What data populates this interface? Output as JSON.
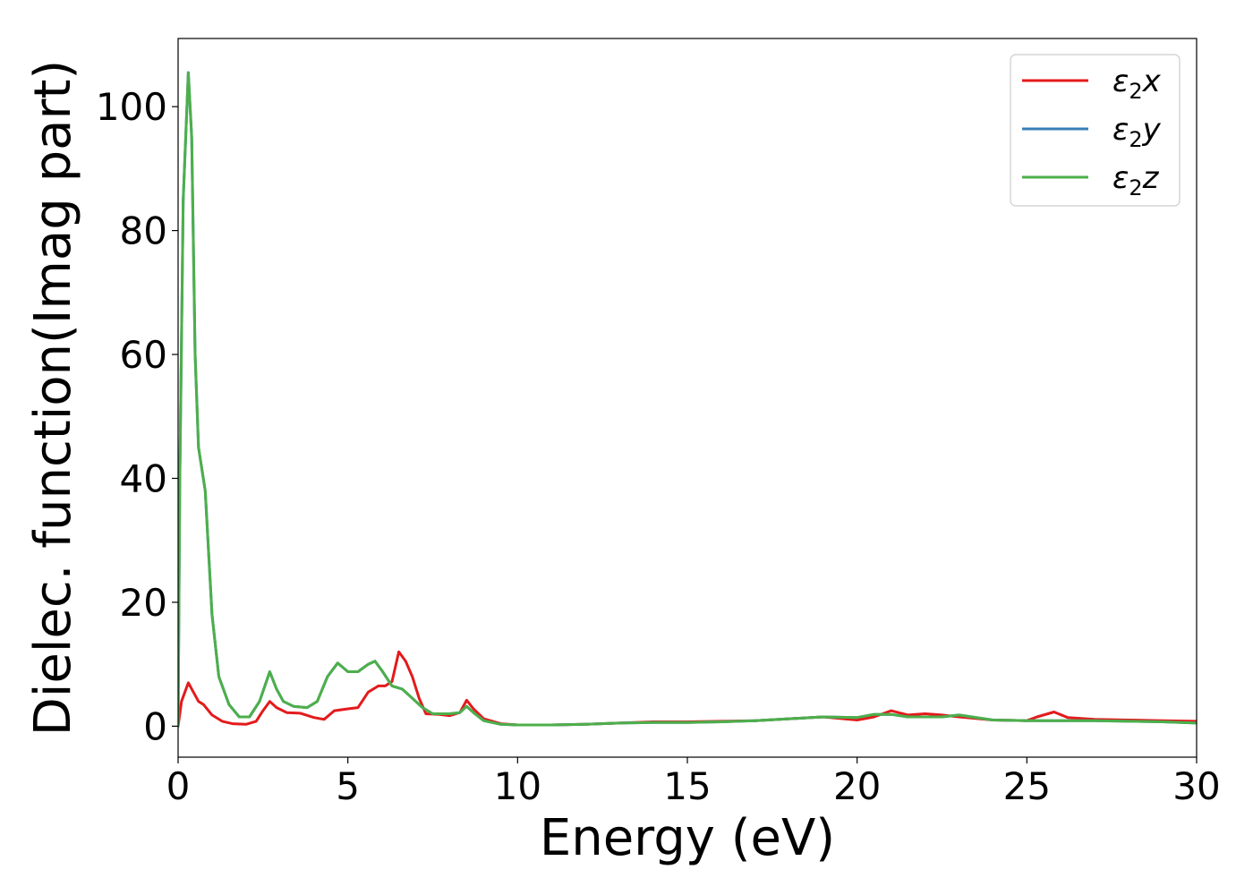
{
  "chart_data": {
    "type": "line",
    "xlabel": "Energy (eV)",
    "ylabel": "Dielec. function(Imag part)",
    "xlim": [
      0,
      30
    ],
    "ylim": [
      -5,
      111
    ],
    "xticks": [
      0,
      5,
      10,
      15,
      20,
      25,
      30
    ],
    "yticks": [
      0,
      20,
      40,
      60,
      80,
      100
    ],
    "grid": false,
    "legend_position": "top-right",
    "series": [
      {
        "name": "ε2x",
        "legend_main": "ε",
        "legend_sub": "2",
        "legend_var": "x",
        "color": "#e41a1c",
        "points": [
          [
            0,
            0
          ],
          [
            0.1,
            4
          ],
          [
            0.3,
            7
          ],
          [
            0.45,
            5.5
          ],
          [
            0.6,
            4
          ],
          [
            0.75,
            3.5
          ],
          [
            1,
            1.8
          ],
          [
            1.3,
            0.8
          ],
          [
            1.6,
            0.4
          ],
          [
            2,
            0.3
          ],
          [
            2.3,
            0.8
          ],
          [
            2.5,
            2.5
          ],
          [
            2.7,
            4
          ],
          [
            2.9,
            3
          ],
          [
            3.2,
            2.2
          ],
          [
            3.6,
            2.1
          ],
          [
            4,
            1.4
          ],
          [
            4.3,
            1.1
          ],
          [
            4.6,
            2.5
          ],
          [
            5,
            2.8
          ],
          [
            5.3,
            3
          ],
          [
            5.6,
            5.5
          ],
          [
            5.9,
            6.5
          ],
          [
            6.1,
            6.5
          ],
          [
            6.3,
            7.2
          ],
          [
            6.5,
            12
          ],
          [
            6.7,
            10.5
          ],
          [
            6.9,
            8
          ],
          [
            7.1,
            4.5
          ],
          [
            7.3,
            2
          ],
          [
            7.7,
            1.9
          ],
          [
            8,
            1.7
          ],
          [
            8.3,
            2.2
          ],
          [
            8.5,
            4.2
          ],
          [
            8.7,
            2.8
          ],
          [
            9,
            1.2
          ],
          [
            9.5,
            0.4
          ],
          [
            10,
            0.2
          ],
          [
            11,
            0.2
          ],
          [
            12,
            0.3
          ],
          [
            13,
            0.5
          ],
          [
            14,
            0.7
          ],
          [
            15,
            0.7
          ],
          [
            16,
            0.8
          ],
          [
            17,
            0.9
          ],
          [
            18,
            1.2
          ],
          [
            19,
            1.5
          ],
          [
            20,
            1.0
          ],
          [
            20.5,
            1.5
          ],
          [
            21,
            2.5
          ],
          [
            21.5,
            1.8
          ],
          [
            22,
            2.0
          ],
          [
            22.5,
            1.8
          ],
          [
            23,
            1.5
          ],
          [
            24,
            1.0
          ],
          [
            25,
            0.9
          ],
          [
            25.3,
            1.5
          ],
          [
            25.8,
            2.3
          ],
          [
            26.2,
            1.4
          ],
          [
            27,
            1.1
          ],
          [
            28,
            1.0
          ],
          [
            29,
            0.9
          ],
          [
            30,
            0.8
          ]
        ]
      },
      {
        "name": "ε2y",
        "legend_main": "ε",
        "legend_sub": "2",
        "legend_var": "y",
        "color": "#377eb8",
        "points": [
          [
            0,
            0
          ],
          [
            0.05,
            40
          ],
          [
            0.15,
            85
          ],
          [
            0.3,
            105.5
          ],
          [
            0.4,
            95
          ],
          [
            0.5,
            60
          ],
          [
            0.6,
            45
          ],
          [
            0.8,
            38
          ],
          [
            0.9,
            28
          ],
          [
            1.0,
            18
          ],
          [
            1.2,
            8
          ],
          [
            1.5,
            3.5
          ],
          [
            1.8,
            1.5
          ],
          [
            2.1,
            1.5
          ],
          [
            2.4,
            4
          ],
          [
            2.7,
            8.8
          ],
          [
            2.9,
            6
          ],
          [
            3.1,
            4
          ],
          [
            3.4,
            3.2
          ],
          [
            3.8,
            3
          ],
          [
            4.1,
            4
          ],
          [
            4.4,
            8
          ],
          [
            4.7,
            10.2
          ],
          [
            5,
            8.8
          ],
          [
            5.3,
            8.8
          ],
          [
            5.6,
            10
          ],
          [
            5.8,
            10.5
          ],
          [
            6.0,
            9
          ],
          [
            6.3,
            6.5
          ],
          [
            6.6,
            6
          ],
          [
            6.9,
            4.5
          ],
          [
            7.2,
            3
          ],
          [
            7.5,
            2
          ],
          [
            8,
            2
          ],
          [
            8.3,
            2.2
          ],
          [
            8.5,
            3.2
          ],
          [
            8.7,
            2.2
          ],
          [
            9,
            0.9
          ],
          [
            9.5,
            0.3
          ],
          [
            10,
            0.2
          ],
          [
            11,
            0.2
          ],
          [
            12,
            0.3
          ],
          [
            13,
            0.5
          ],
          [
            14,
            0.6
          ],
          [
            15,
            0.6
          ],
          [
            16,
            0.7
          ],
          [
            17,
            0.9
          ],
          [
            18,
            1.2
          ],
          [
            19,
            1.5
          ],
          [
            20,
            1.4
          ],
          [
            20.5,
            1.9
          ],
          [
            21,
            1.9
          ],
          [
            21.5,
            1.5
          ],
          [
            22,
            1.5
          ],
          [
            22.5,
            1.5
          ],
          [
            23,
            1.8
          ],
          [
            24,
            1.0
          ],
          [
            25,
            0.9
          ],
          [
            26,
            0.9
          ],
          [
            27,
            0.9
          ],
          [
            28,
            0.8
          ],
          [
            29,
            0.7
          ],
          [
            30,
            0.5
          ]
        ]
      },
      {
        "name": "ε2z",
        "legend_main": "ε",
        "legend_sub": "2",
        "legend_var": "z",
        "color": "#4daf4a",
        "points": [
          [
            0,
            0
          ],
          [
            0.05,
            40
          ],
          [
            0.15,
            85
          ],
          [
            0.3,
            105.5
          ],
          [
            0.4,
            95
          ],
          [
            0.5,
            60
          ],
          [
            0.6,
            45
          ],
          [
            0.8,
            38
          ],
          [
            0.9,
            28
          ],
          [
            1.0,
            18
          ],
          [
            1.2,
            8
          ],
          [
            1.5,
            3.5
          ],
          [
            1.8,
            1.5
          ],
          [
            2.1,
            1.5
          ],
          [
            2.4,
            4
          ],
          [
            2.7,
            8.8
          ],
          [
            2.9,
            6
          ],
          [
            3.1,
            4
          ],
          [
            3.4,
            3.2
          ],
          [
            3.8,
            3
          ],
          [
            4.1,
            4
          ],
          [
            4.4,
            8
          ],
          [
            4.7,
            10.2
          ],
          [
            5,
            8.8
          ],
          [
            5.3,
            8.8
          ],
          [
            5.6,
            10
          ],
          [
            5.8,
            10.5
          ],
          [
            6.0,
            9
          ],
          [
            6.3,
            6.5
          ],
          [
            6.6,
            6
          ],
          [
            6.9,
            4.5
          ],
          [
            7.2,
            3
          ],
          [
            7.5,
            2
          ],
          [
            8,
            2
          ],
          [
            8.3,
            2.2
          ],
          [
            8.5,
            3.2
          ],
          [
            8.7,
            2.2
          ],
          [
            9,
            0.9
          ],
          [
            9.5,
            0.3
          ],
          [
            10,
            0.2
          ],
          [
            11,
            0.2
          ],
          [
            12,
            0.3
          ],
          [
            13,
            0.5
          ],
          [
            14,
            0.6
          ],
          [
            15,
            0.6
          ],
          [
            16,
            0.7
          ],
          [
            17,
            0.9
          ],
          [
            18,
            1.2
          ],
          [
            19,
            1.5
          ],
          [
            20,
            1.4
          ],
          [
            20.5,
            1.9
          ],
          [
            21,
            1.9
          ],
          [
            21.5,
            1.5
          ],
          [
            22,
            1.5
          ],
          [
            22.5,
            1.5
          ],
          [
            23,
            1.8
          ],
          [
            24,
            1.0
          ],
          [
            25,
            0.9
          ],
          [
            26,
            0.9
          ],
          [
            27,
            0.9
          ],
          [
            28,
            0.8
          ],
          [
            29,
            0.7
          ],
          [
            30,
            0.5
          ]
        ]
      }
    ]
  }
}
